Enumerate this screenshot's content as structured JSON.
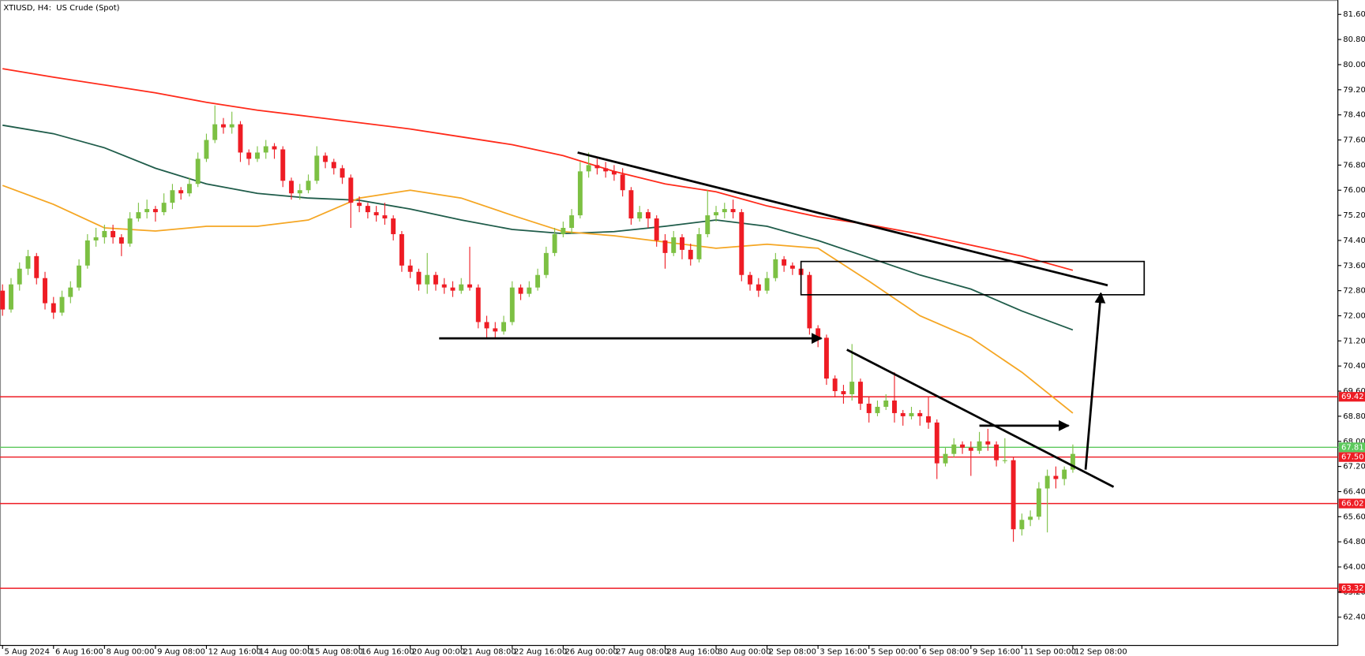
{
  "chart_data": {
    "type": "candlestick",
    "title": "XTIUSD, H4:  US Crude (Spot)",
    "up_color": "#7cc043",
    "down_color": "#ee1c24",
    "xlim": [
      -0.3,
      157.2
    ],
    "ylim": [
      61.5,
      82.0
    ],
    "yticks": [
      {
        "value": 81.6,
        "label": "81.60"
      },
      {
        "value": 80.8,
        "label": "80.80"
      },
      {
        "value": 80,
        "label": "80.00"
      },
      {
        "value": 79.2,
        "label": "79.20"
      },
      {
        "value": 78.4,
        "label": "78.40"
      },
      {
        "value": 77.6,
        "label": "77.60"
      },
      {
        "value": 76.8,
        "label": "76.80"
      },
      {
        "value": 76,
        "label": "76.00"
      },
      {
        "value": 75.2,
        "label": "75.20"
      },
      {
        "value": 74.4,
        "label": "74.40"
      },
      {
        "value": 73.6,
        "label": "73.60"
      },
      {
        "value": 72.8,
        "label": "72.80"
      },
      {
        "value": 72,
        "label": "72.00"
      },
      {
        "value": 71.2,
        "label": "71.20"
      },
      {
        "value": 70.4,
        "label": "70.40"
      },
      {
        "value": 69.6,
        "label": "69.60"
      },
      {
        "value": 68.8,
        "label": "68.80"
      },
      {
        "value": 68,
        "label": "68.00"
      },
      {
        "value": 67.2,
        "label": "67.20"
      },
      {
        "value": 66.4,
        "label": "66.40"
      },
      {
        "value": 65.6,
        "label": "65.60"
      },
      {
        "value": 64.8,
        "label": "64.80"
      },
      {
        "value": 64,
        "label": "64.00"
      },
      {
        "value": 63.2,
        "label": "63.20"
      },
      {
        "value": 62.4,
        "label": "62.40"
      }
    ],
    "xticks": [
      {
        "value": 0,
        "label": "5 Aug 2024"
      },
      {
        "value": 6,
        "label": "6 Aug 16:00"
      },
      {
        "value": 12,
        "label": "8 Aug 00:00"
      },
      {
        "value": 18,
        "label": "9 Aug 08:00"
      },
      {
        "value": 24,
        "label": "12 Aug 16:00"
      },
      {
        "value": 30,
        "label": "14 Aug 00:00"
      },
      {
        "value": 36,
        "label": "15 Aug 08:00"
      },
      {
        "value": 42,
        "label": "16 Aug 16:00"
      },
      {
        "value": 48,
        "label": "20 Aug 00:00"
      },
      {
        "value": 54,
        "label": "21 Aug 08:00"
      },
      {
        "value": 60,
        "label": "22 Aug 16:00"
      },
      {
        "value": 66,
        "label": "26 Aug 00:00"
      },
      {
        "value": 72,
        "label": "27 Aug 08:00"
      },
      {
        "value": 78,
        "label": "28 Aug 16:00"
      },
      {
        "value": 84,
        "label": "30 Aug 00:00"
      },
      {
        "value": 90,
        "label": "2 Sep 08:00"
      },
      {
        "value": 96,
        "label": "3 Sep 16:00"
      },
      {
        "value": 102,
        "label": "5 Sep 00:00"
      },
      {
        "value": 108,
        "label": "6 Sep 08:00"
      },
      {
        "value": 114,
        "label": "9 Sep 16:00"
      },
      {
        "value": 120,
        "label": "11 Sep 00:00"
      },
      {
        "value": 126,
        "label": "12 Sep 08:00"
      }
    ],
    "ohlc": [
      [
        72.8,
        73.0,
        72.0,
        72.2
      ],
      [
        72.2,
        73.2,
        72.1,
        73.0
      ],
      [
        73.0,
        73.7,
        72.8,
        73.5
      ],
      [
        73.5,
        74.1,
        73.3,
        73.9
      ],
      [
        73.9,
        74.0,
        73.0,
        73.2
      ],
      [
        73.2,
        73.4,
        72.2,
        72.4
      ],
      [
        72.4,
        72.6,
        71.9,
        72.1
      ],
      [
        72.1,
        72.8,
        72.0,
        72.6
      ],
      [
        72.6,
        73.1,
        72.4,
        72.9
      ],
      [
        72.9,
        73.8,
        72.8,
        73.6
      ],
      [
        73.6,
        74.6,
        73.5,
        74.4
      ],
      [
        74.4,
        74.8,
        74.2,
        74.5
      ],
      [
        74.5,
        74.9,
        74.3,
        74.7
      ],
      [
        74.7,
        74.9,
        74.3,
        74.5
      ],
      [
        74.5,
        74.6,
        73.9,
        74.3
      ],
      [
        74.3,
        75.3,
        74.2,
        75.1
      ],
      [
        75.1,
        75.6,
        75.0,
        75.3
      ],
      [
        75.3,
        75.7,
        75.1,
        75.4
      ],
      [
        75.4,
        75.5,
        75.0,
        75.3
      ],
      [
        75.3,
        75.9,
        75.2,
        75.6
      ],
      [
        75.6,
        76.2,
        75.4,
        76.0
      ],
      [
        76.0,
        76.1,
        75.7,
        75.9
      ],
      [
        75.9,
        76.4,
        75.8,
        76.2
      ],
      [
        76.2,
        77.2,
        76.1,
        77.0
      ],
      [
        77.0,
        77.8,
        76.9,
        77.6
      ],
      [
        77.6,
        78.7,
        77.5,
        78.1
      ],
      [
        78.1,
        78.3,
        77.8,
        78.0
      ],
      [
        78.0,
        78.5,
        77.8,
        78.1
      ],
      [
        78.1,
        78.2,
        76.9,
        77.2
      ],
      [
        77.2,
        77.3,
        76.8,
        77.0
      ],
      [
        77.0,
        77.4,
        76.9,
        77.2
      ],
      [
        77.2,
        77.6,
        77.0,
        77.4
      ],
      [
        77.4,
        77.5,
        77.0,
        77.3
      ],
      [
        77.3,
        77.4,
        76.1,
        76.3
      ],
      [
        76.3,
        76.4,
        75.7,
        75.9
      ],
      [
        75.9,
        76.2,
        75.7,
        76.0
      ],
      [
        76.0,
        76.5,
        75.9,
        76.3
      ],
      [
        76.3,
        77.4,
        76.2,
        77.1
      ],
      [
        77.1,
        77.2,
        76.7,
        76.9
      ],
      [
        76.9,
        77.0,
        76.5,
        76.7
      ],
      [
        76.7,
        76.8,
        76.2,
        76.4
      ],
      [
        76.4,
        76.5,
        74.8,
        75.6
      ],
      [
        75.6,
        75.8,
        75.3,
        75.5
      ],
      [
        75.5,
        75.6,
        75.1,
        75.3
      ],
      [
        75.3,
        75.5,
        75.0,
        75.2
      ],
      [
        75.2,
        75.6,
        74.9,
        75.1
      ],
      [
        75.1,
        75.2,
        74.4,
        74.6
      ],
      [
        74.6,
        74.7,
        73.4,
        73.6
      ],
      [
        73.6,
        73.8,
        73.2,
        73.4
      ],
      [
        73.4,
        73.5,
        72.8,
        73.0
      ],
      [
        73.0,
        74.0,
        72.7,
        73.3
      ],
      [
        73.3,
        73.4,
        72.8,
        73.0
      ],
      [
        73.0,
        73.2,
        72.7,
        72.9
      ],
      [
        72.9,
        73.1,
        72.6,
        72.8
      ],
      [
        72.8,
        73.2,
        72.7,
        73.0
      ],
      [
        73.0,
        74.2,
        72.8,
        72.9
      ],
      [
        72.9,
        73.0,
        71.6,
        71.8
      ],
      [
        71.8,
        72.0,
        71.3,
        71.6
      ],
      [
        71.6,
        71.8,
        71.3,
        71.5
      ],
      [
        71.5,
        72.0,
        71.4,
        71.8
      ],
      [
        71.8,
        73.1,
        71.7,
        72.9
      ],
      [
        72.9,
        73.0,
        72.5,
        72.7
      ],
      [
        72.7,
        73.1,
        72.6,
        72.9
      ],
      [
        72.9,
        73.5,
        72.8,
        73.3
      ],
      [
        73.3,
        74.2,
        73.2,
        74.0
      ],
      [
        74.0,
        74.8,
        73.9,
        74.6
      ],
      [
        74.6,
        75.0,
        74.5,
        74.8
      ],
      [
        74.8,
        75.4,
        74.6,
        75.2
      ],
      [
        75.2,
        76.9,
        75.1,
        76.6
      ],
      [
        76.6,
        77.2,
        76.4,
        76.8
      ],
      [
        76.8,
        77.0,
        76.5,
        76.7
      ],
      [
        76.7,
        76.9,
        76.4,
        76.6
      ],
      [
        76.6,
        76.8,
        76.3,
        76.5
      ],
      [
        76.5,
        76.7,
        75.8,
        76.0
      ],
      [
        76.0,
        76.1,
        74.9,
        75.1
      ],
      [
        75.1,
        75.5,
        75.0,
        75.3
      ],
      [
        75.3,
        75.4,
        74.8,
        75.1
      ],
      [
        75.1,
        75.2,
        74.2,
        74.4
      ],
      [
        74.4,
        74.6,
        73.5,
        74.0
      ],
      [
        74.0,
        74.7,
        73.9,
        74.5
      ],
      [
        74.5,
        74.6,
        73.8,
        74.1
      ],
      [
        74.1,
        74.3,
        73.6,
        73.8
      ],
      [
        73.8,
        74.8,
        73.7,
        74.6
      ],
      [
        74.6,
        76.0,
        74.5,
        75.2
      ],
      [
        75.2,
        75.5,
        75.0,
        75.3
      ],
      [
        75.3,
        75.6,
        75.1,
        75.4
      ],
      [
        75.4,
        75.7,
        75.1,
        75.3
      ],
      [
        75.3,
        75.4,
        73.1,
        73.3
      ],
      [
        73.3,
        73.4,
        72.8,
        73.0
      ],
      [
        73.0,
        73.2,
        72.6,
        72.8
      ],
      [
        72.8,
        73.4,
        72.7,
        73.2
      ],
      [
        73.2,
        74.0,
        73.1,
        73.8
      ],
      [
        73.8,
        73.9,
        73.4,
        73.6
      ],
      [
        73.6,
        73.7,
        73.3,
        73.5
      ],
      [
        73.5,
        73.6,
        73.1,
        73.3
      ],
      [
        73.3,
        73.4,
        71.4,
        71.6
      ],
      [
        71.6,
        71.7,
        71.0,
        71.3
      ],
      [
        71.3,
        71.4,
        69.8,
        70.0
      ],
      [
        70.0,
        70.1,
        69.4,
        69.6
      ],
      [
        69.6,
        69.8,
        69.2,
        69.5
      ],
      [
        69.5,
        71.1,
        69.3,
        69.9
      ],
      [
        69.9,
        70.0,
        69.0,
        69.2
      ],
      [
        69.2,
        69.4,
        68.6,
        68.9
      ],
      [
        68.9,
        69.3,
        68.8,
        69.1
      ],
      [
        69.1,
        69.5,
        69.0,
        69.3
      ],
      [
        69.3,
        70.2,
        68.6,
        68.9
      ],
      [
        68.9,
        69.0,
        68.5,
        68.8
      ],
      [
        68.8,
        69.1,
        68.7,
        68.9
      ],
      [
        68.9,
        69.0,
        68.5,
        68.8
      ],
      [
        68.8,
        69.4,
        68.4,
        68.6
      ],
      [
        68.6,
        68.7,
        66.8,
        67.3
      ],
      [
        67.3,
        67.8,
        67.2,
        67.6
      ],
      [
        67.6,
        68.1,
        67.5,
        67.9
      ],
      [
        67.9,
        68.0,
        67.6,
        67.8
      ],
      [
        67.8,
        68.0,
        66.9,
        67.7
      ],
      [
        67.7,
        68.3,
        67.6,
        68.0
      ],
      [
        68.0,
        68.4,
        67.7,
        67.9
      ],
      [
        67.9,
        68.0,
        67.2,
        67.4
      ],
      [
        67.4,
        68.1,
        67.3,
        67.4
      ],
      [
        67.4,
        67.5,
        64.8,
        65.2
      ],
      [
        65.2,
        65.7,
        65.0,
        65.5
      ],
      [
        65.5,
        65.8,
        65.3,
        65.6
      ],
      [
        65.6,
        66.7,
        65.5,
        66.5
      ],
      [
        66.5,
        67.1,
        65.1,
        66.9
      ],
      [
        66.9,
        67.2,
        66.5,
        66.8
      ],
      [
        66.8,
        67.2,
        66.6,
        67.1
      ],
      [
        67.1,
        67.9,
        67.0,
        67.6
      ]
    ],
    "indicators": [
      {
        "color": "#ff2a1a",
        "x": [
          0,
          6,
          12,
          18,
          24,
          30,
          36,
          42,
          48,
          54,
          60,
          66,
          72,
          78,
          84,
          90,
          96,
          102,
          108,
          114,
          120,
          126
        ],
        "values": [
          79.87,
          79.6,
          79.35,
          79.1,
          78.8,
          78.55,
          78.35,
          78.15,
          77.95,
          77.7,
          77.45,
          77.1,
          76.6,
          76.2,
          75.95,
          75.5,
          75.15,
          74.9,
          74.6,
          74.25,
          73.9,
          73.45
        ]
      },
      {
        "color": "#1f5c4a",
        "x": [
          0,
          6,
          12,
          18,
          24,
          30,
          36,
          42,
          48,
          54,
          60,
          66,
          72,
          78,
          84,
          90,
          96,
          102,
          108,
          114,
          120,
          126
        ],
        "values": [
          78.07,
          77.8,
          77.35,
          76.7,
          76.2,
          75.9,
          75.75,
          75.68,
          75.4,
          75.05,
          74.75,
          74.62,
          74.68,
          74.85,
          75.05,
          74.85,
          74.4,
          73.85,
          73.3,
          72.85,
          72.15,
          71.55
        ]
      },
      {
        "color": "#f5a623",
        "x": [
          0,
          6,
          12,
          18,
          24,
          30,
          36,
          42,
          48,
          54,
          60,
          66,
          72,
          78,
          84,
          90,
          96,
          102,
          108,
          114,
          120,
          126
        ],
        "values": [
          76.15,
          75.55,
          74.8,
          74.7,
          74.85,
          74.85,
          75.05,
          75.75,
          76.0,
          75.75,
          75.2,
          74.68,
          74.55,
          74.35,
          74.15,
          74.28,
          74.15,
          73.1,
          72.0,
          71.3,
          70.2,
          68.9
        ]
      }
    ],
    "levels": [
      {
        "value": 69.42,
        "color": "#ee1c24"
      },
      {
        "value": 67.81,
        "color": "#5cc95c"
      },
      {
        "value": 67.5,
        "label": "67.50",
        "color": "#ee1c24"
      },
      {
        "value": 66.02,
        "color": "#ee1c24"
      },
      {
        "value": 63.32,
        "color": "#ee1c24"
      }
    ],
    "trendlines": [
      [
        67.7,
        77.2,
        130.1,
        72.97
      ],
      [
        99.4,
        70.92,
        130.8,
        66.55
      ]
    ],
    "arrows": [
      [
        51.4,
        71.28,
        96.4,
        71.28
      ],
      [
        115,
        68.5,
        125.5,
        68.5
      ],
      [
        127.5,
        67.1,
        129.3,
        72.72
      ]
    ],
    "rectangles": [
      [
        94.0,
        73.73,
        134.4,
        72.67
      ]
    ]
  }
}
